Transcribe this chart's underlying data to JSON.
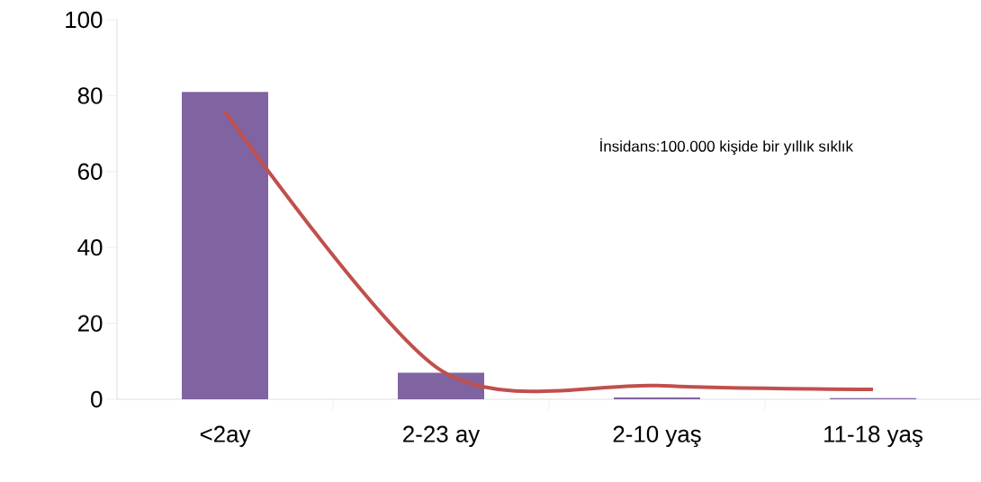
{
  "chart_data": {
    "type": "bar",
    "categories": [
      "<2ay",
      "2-23 ay",
      "2-10 yaş",
      "11-18 yaş"
    ],
    "ylim": [
      0,
      100
    ],
    "yticks": [
      0,
      20,
      40,
      60,
      80,
      100
    ],
    "marker": "none",
    "annotations": [
      "İnsidans:100.000 kişide bir yıllık sıklık"
    ],
    "series": [
      {
        "color": "#8064a2",
        "values": [
          81,
          7,
          0.5,
          0.3
        ]
      },
      {
        "type": "line",
        "color": "#c0504d",
        "values": [
          75.8,
          7.6,
          3.6,
          2.6
        ]
      }
    ]
  }
}
